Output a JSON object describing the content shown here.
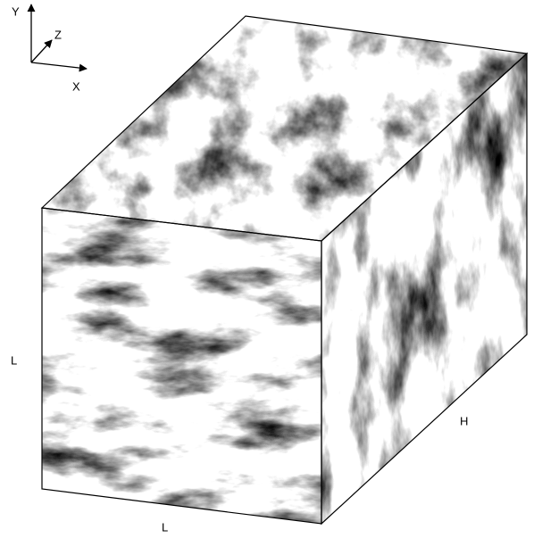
{
  "axes": {
    "y": "Y",
    "z": "Z",
    "x": "X"
  },
  "dimensions": {
    "height": "L",
    "width": "L",
    "depth": "H"
  }
}
